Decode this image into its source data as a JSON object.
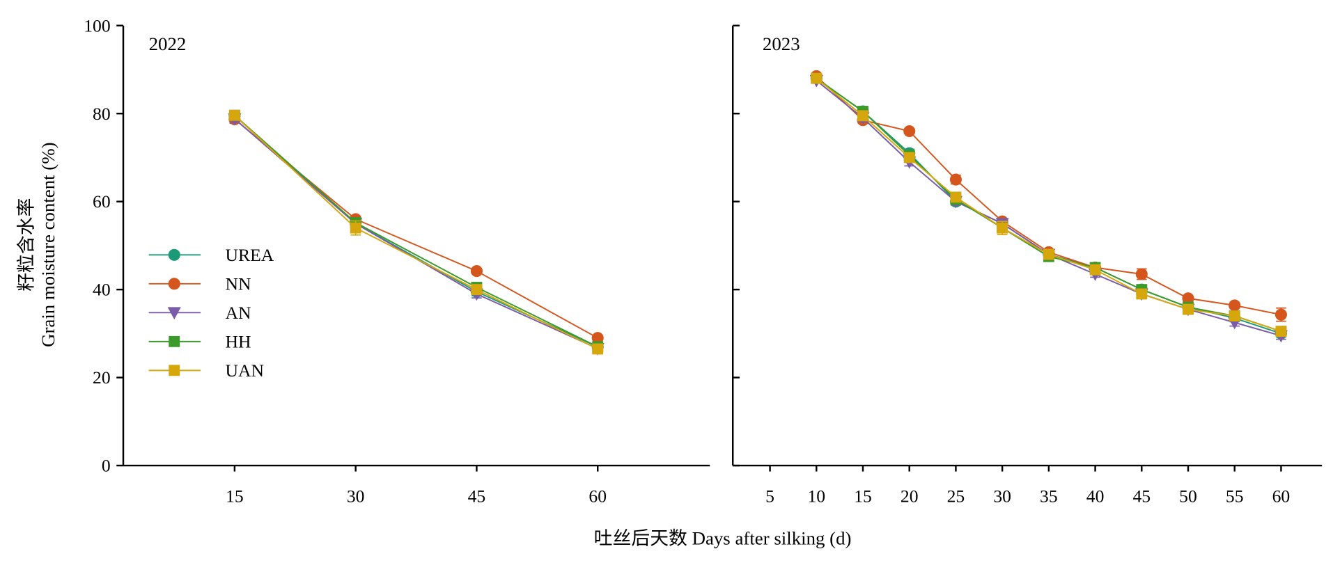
{
  "figure": {
    "ylabel_cn": "籽粒含水率",
    "ylabel_en": "Grain moisture content (%)",
    "xlabel": "吐丝后天数 Days after silking (d)"
  },
  "chart_data": [
    {
      "type": "line",
      "title": "2022",
      "x": [
        15,
        30,
        45,
        60
      ],
      "xticks": [
        15,
        30,
        45,
        60
      ],
      "xlim": [
        1.2,
        73.9
      ],
      "ylim": [
        0,
        100
      ],
      "yticks": [
        0,
        20,
        40,
        60,
        80,
        100
      ],
      "ytick_labels": true,
      "grid": false,
      "legend": "center-left",
      "series": [
        {
          "name": "UREA",
          "color": "#1b9a77",
          "marker": "circle",
          "values": [
            79.5,
            55.0,
            39.5,
            27.0
          ],
          "err": [
            0.8,
            0.8,
            0.9,
            0.8
          ]
        },
        {
          "name": "NN",
          "color": "#d4561c",
          "marker": "circle",
          "values": [
            78.7,
            56.0,
            44.2,
            29.0
          ],
          "err": [
            0.9,
            0.6,
            0.6,
            0.5
          ]
        },
        {
          "name": "AN",
          "color": "#7a5ca8",
          "marker": "triangle-down",
          "values": [
            78.8,
            55.0,
            39.0,
            26.6
          ],
          "err": [
            0.8,
            0.8,
            0.9,
            0.8
          ]
        },
        {
          "name": "HH",
          "color": "#3c9a2b",
          "marker": "square",
          "values": [
            79.6,
            55.2,
            40.5,
            27.0
          ],
          "err": [
            0.8,
            0.7,
            1.0,
            0.8
          ]
        },
        {
          "name": "UAN",
          "color": "#d6a70c",
          "marker": "square",
          "values": [
            79.6,
            54.0,
            40.0,
            26.5
          ],
          "err": [
            0.7,
            1.6,
            0.8,
            1.0
          ]
        }
      ]
    },
    {
      "type": "line",
      "title": "2023",
      "x": [
        10,
        15,
        20,
        25,
        30,
        35,
        40,
        45,
        50,
        55,
        60
      ],
      "xticks": [
        5,
        10,
        15,
        20,
        25,
        30,
        35,
        40,
        45,
        50,
        55,
        60
      ],
      "xlim": [
        1.0,
        64.4
      ],
      "ylim": [
        0,
        100
      ],
      "yticks": [
        0,
        20,
        40,
        60,
        80,
        100
      ],
      "ytick_labels": false,
      "grid": false,
      "series": [
        {
          "name": "UREA",
          "color": "#1b9a77",
          "marker": "circle",
          "values": [
            88.0,
            80.5,
            71.0,
            60.0,
            55.0,
            48.0,
            45.0,
            40.0,
            36.0,
            33.5,
            30.0
          ],
          "err": [
            0.6,
            1.0,
            0.9,
            0.8,
            0.7,
            0.8,
            0.7,
            0.8,
            0.7,
            0.8,
            0.8
          ]
        },
        {
          "name": "NN",
          "color": "#d4561c",
          "marker": "circle",
          "values": [
            88.5,
            78.5,
            76.0,
            65.0,
            55.5,
            48.5,
            45.0,
            43.5,
            38.0,
            36.4,
            34.3
          ],
          "err": [
            0.5,
            0.7,
            0.5,
            1.0,
            0.6,
            0.6,
            0.7,
            1.2,
            0.7,
            0.7,
            1.5
          ]
        },
        {
          "name": "AN",
          "color": "#7a5ca8",
          "marker": "triangle-down",
          "values": [
            87.5,
            79.0,
            69.0,
            60.0,
            55.0,
            48.0,
            43.5,
            39.0,
            35.5,
            32.5,
            29.5
          ],
          "err": [
            0.6,
            0.8,
            0.9,
            0.8,
            0.7,
            0.7,
            0.7,
            0.7,
            0.7,
            0.8,
            0.8
          ]
        },
        {
          "name": "HH",
          "color": "#3c9a2b",
          "marker": "square",
          "values": [
            88.0,
            80.5,
            70.5,
            60.5,
            54.0,
            47.5,
            45.0,
            40.0,
            36.0,
            34.0,
            30.5
          ],
          "err": [
            0.6,
            0.9,
            0.9,
            0.8,
            1.0,
            0.8,
            0.7,
            0.8,
            0.7,
            0.8,
            0.8
          ]
        },
        {
          "name": "UAN",
          "color": "#d6a70c",
          "marker": "square",
          "values": [
            88.0,
            79.5,
            70.0,
            61.0,
            54.0,
            48.0,
            44.5,
            39.0,
            35.5,
            34.0,
            30.5
          ],
          "err": [
            0.6,
            1.0,
            0.9,
            1.0,
            1.5,
            0.8,
            0.7,
            0.7,
            0.9,
            0.8,
            0.8
          ]
        }
      ]
    }
  ]
}
